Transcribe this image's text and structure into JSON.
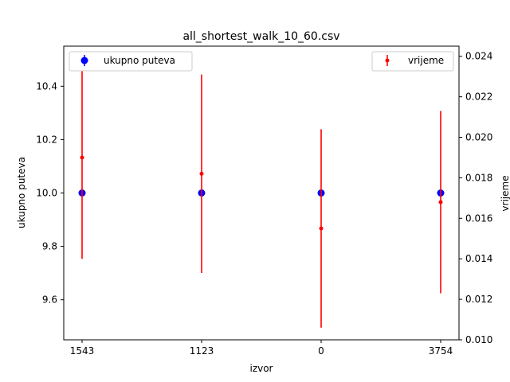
{
  "chart_data": {
    "type": "scatter",
    "title": "all_shortest_walk_10_60.csv",
    "xlabel": "izvor",
    "categories": [
      "1543",
      "1123",
      "0",
      "3754"
    ],
    "y_left": {
      "label": "ukupno puteva",
      "lim": [
        9.45,
        10.55
      ],
      "ticks": [
        9.6,
        9.8,
        10.0,
        10.2,
        10.4
      ],
      "tick_labels": [
        "9.6",
        "9.8",
        "10.0",
        "10.2",
        "10.4"
      ]
    },
    "y_right": {
      "label": "vrijeme",
      "lim": [
        0.01,
        0.0245
      ],
      "ticks": [
        0.01,
        0.012,
        0.014,
        0.016,
        0.018,
        0.02,
        0.022,
        0.024
      ],
      "tick_labels": [
        "0.010",
        "0.012",
        "0.014",
        "0.016",
        "0.018",
        "0.020",
        "0.022",
        "0.024"
      ]
    },
    "series": [
      {
        "name": "ukupno puteva",
        "axis": "left",
        "color": "#0000ff",
        "values": [
          10.0,
          10.0,
          10.0,
          10.0
        ],
        "errors": [
          0,
          0,
          0,
          0
        ]
      },
      {
        "name": "vrijeme",
        "axis": "right",
        "color": "#ff0000",
        "values": [
          0.019,
          0.0182,
          0.0155,
          0.0168
        ],
        "errors": [
          0.005,
          0.0049,
          0.0049,
          0.0045
        ]
      }
    ],
    "legend_left": {
      "placement": "upper-left",
      "label": "ukupno puteva"
    },
    "legend_right": {
      "placement": "upper-right",
      "label": "vrijeme"
    },
    "grid": false
  }
}
